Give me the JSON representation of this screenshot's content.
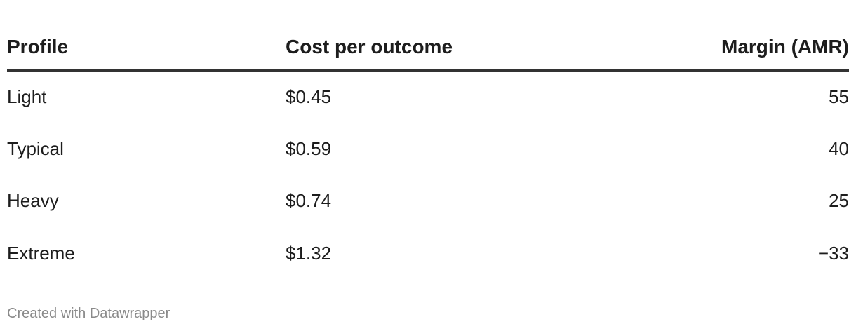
{
  "table": {
    "header": [
      "Profile",
      "Cost per outcome",
      "Margin (AMR)"
    ],
    "rows": [
      [
        "Light",
        "$0.45",
        "55"
      ],
      [
        "Typical",
        "$0.59",
        "40"
      ],
      [
        "Heavy",
        "$0.74",
        "25"
      ],
      [
        "Extreme",
        "$1.32",
        "−33"
      ]
    ]
  },
  "footer": {
    "credit": "Created with Datawrapper"
  }
}
